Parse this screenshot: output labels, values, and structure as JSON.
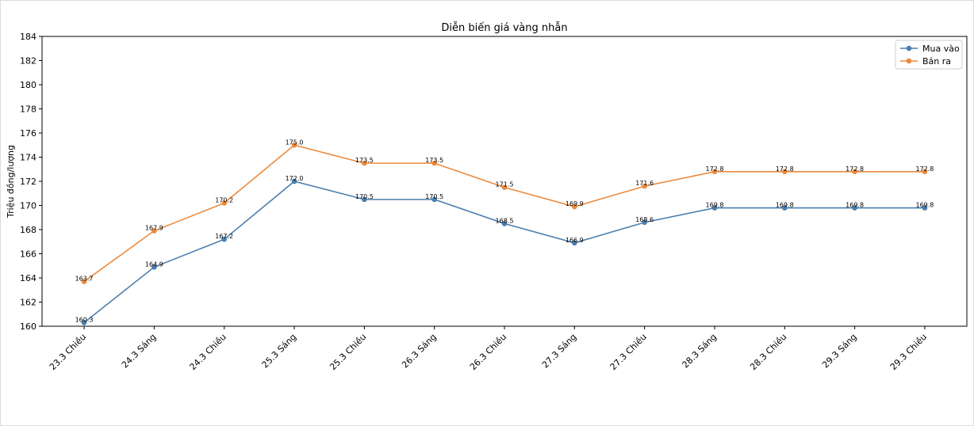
{
  "chart_data": {
    "type": "line",
    "title": "Diễn biến giá vàng nhẫn",
    "xlabel": "",
    "ylabel": "Triệu đồng/lượng",
    "categories": [
      "23.3 Chiều",
      "24.3 Sáng",
      "24.3 Chiều",
      "25.3 Sáng",
      "25.3 Chiều",
      "26.3 Sáng",
      "26.3 Chiều",
      "27.3 Sáng",
      "27.3 Chiều",
      "28.3 Sáng",
      "28.3 Chiều",
      "29.3 Sáng",
      "29.3 Chiều"
    ],
    "series": [
      {
        "name": "Mua vào",
        "color": "#4a7ead",
        "values": [
          160.3,
          164.9,
          167.2,
          172.0,
          170.5,
          170.5,
          168.5,
          166.9,
          168.6,
          169.8,
          169.8,
          169.8,
          169.8
        ]
      },
      {
        "name": "Bán ra",
        "color": "#eb8a3c",
        "values": [
          163.7,
          167.9,
          170.2,
          175.0,
          173.5,
          173.5,
          171.5,
          169.9,
          171.6,
          172.8,
          172.8,
          172.8,
          172.8
        ]
      }
    ],
    "ylim": [
      160,
      184
    ],
    "yticks": [
      160,
      162,
      164,
      166,
      168,
      170,
      172,
      174,
      176,
      178,
      180,
      182,
      184
    ],
    "grid": false,
    "legend": "top-right"
  }
}
